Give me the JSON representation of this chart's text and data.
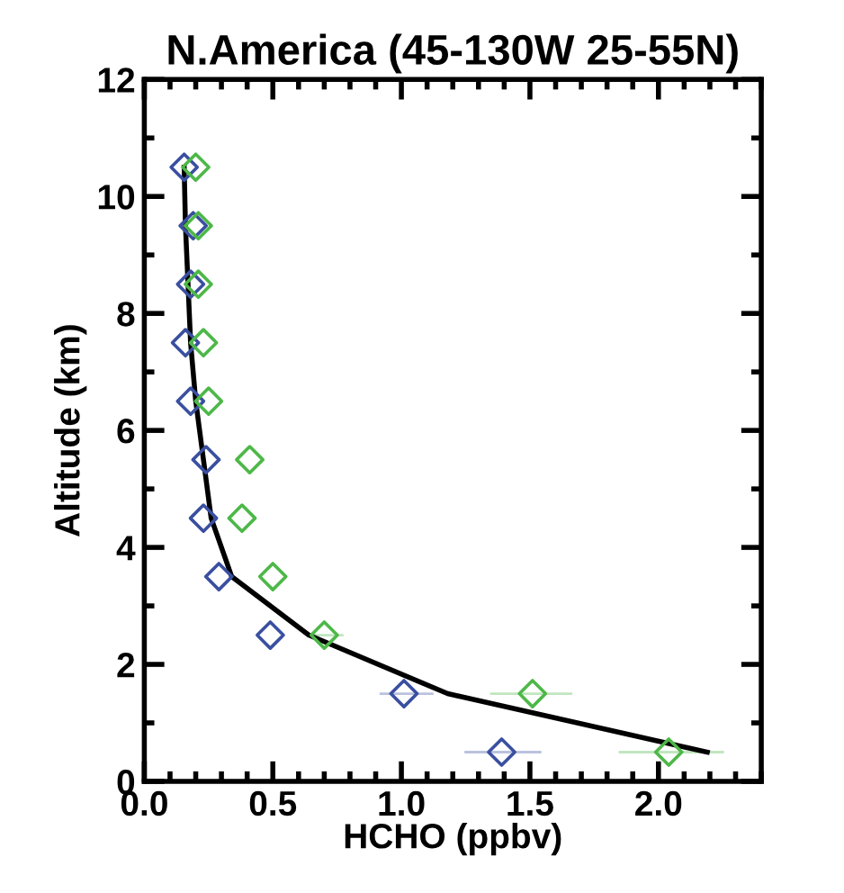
{
  "chart_data": {
    "type": "scatter",
    "title": "N.America (45-130W 25-55N)",
    "xlabel": "HCHO (ppbv)",
    "ylabel": "Altitude (km)",
    "xlim": [
      0,
      2.4
    ],
    "ylim": [
      0,
      12
    ],
    "xticks": [
      {
        "value": 0,
        "label": "0.0"
      },
      {
        "value": 0.5,
        "label": "0.5"
      },
      {
        "value": 1,
        "label": "1.0"
      },
      {
        "value": 1.5,
        "label": "1.5"
      },
      {
        "value": 2,
        "label": "2.0"
      }
    ],
    "yticks": [
      0,
      2,
      4,
      6,
      8,
      10,
      12
    ],
    "grid": false,
    "legend": false,
    "marker": "diamond",
    "series": [
      {
        "color": "#3a4fa0",
        "x": [
          1.39,
          1.01,
          0.49,
          0.29,
          0.23,
          0.24,
          0.18,
          0.16,
          0.18,
          0.19,
          0.155
        ],
        "values": [
          0.5,
          1.5,
          2.5,
          3.5,
          4.5,
          5.5,
          6.5,
          7.5,
          8.5,
          9.5,
          10.5
        ],
        "xerrors": [
          [
            1.25,
            1.54
          ],
          [
            0.92,
            1.12
          ],
          null,
          null,
          null,
          null,
          null,
          null,
          null,
          null,
          null
        ]
      },
      {
        "color": "#4db848",
        "x": [
          2.04,
          1.51,
          0.7,
          0.5,
          0.38,
          0.41,
          0.25,
          0.23,
          0.21,
          0.21,
          0.2
        ],
        "values": [
          0.5,
          1.5,
          2.5,
          3.5,
          4.5,
          5.5,
          6.5,
          7.5,
          8.5,
          9.5,
          10.5
        ],
        "xerrors": [
          [
            1.85,
            2.25
          ],
          [
            1.35,
            1.66
          ],
          [
            0.65,
            0.77
          ],
          null,
          null,
          null,
          null,
          null,
          null,
          null,
          null
        ]
      },
      {
        "type": "line",
        "color": "#000000",
        "marker": "none",
        "line_style": "solid",
        "x": [
          2.19,
          1.18,
          0.64,
          0.34,
          0.26,
          0.23,
          0.2,
          0.18,
          0.17,
          0.16,
          0.155
        ],
        "values": [
          0.5,
          1.5,
          2.5,
          3.5,
          4.5,
          5.5,
          6.5,
          7.5,
          8.5,
          9.5,
          10.5
        ]
      }
    ]
  }
}
